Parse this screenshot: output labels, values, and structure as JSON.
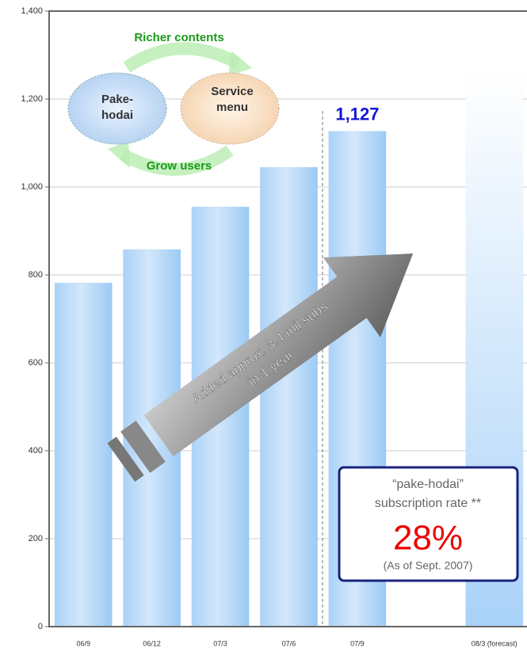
{
  "chart_data": {
    "type": "bar",
    "categories": [
      "06/9",
      "06/12",
      "07/3",
      "07/6",
      "07/9",
      null,
      "08/3 (forecast)"
    ],
    "values": [
      782,
      858,
      955,
      1045,
      1127,
      null,
      1258
    ],
    "value_labels": [
      null,
      null,
      null,
      null,
      "1,127",
      null,
      null
    ],
    "colors": [
      "#9ccaf5",
      "#9ccaf5",
      "#9ccaf5",
      "#9ccaf5",
      "#9ccaf5",
      null,
      "#a9d2f8"
    ],
    "ylim": [
      0,
      1400
    ],
    "yticks": [
      0,
      200,
      400,
      600,
      800,
      {
        "value": 1000,
        "label": "1,000"
      },
      {
        "value": 1200,
        "label": "1,200"
      },
      {
        "value": 1400,
        "label": "1,400"
      }
    ],
    "grid": true,
    "annotations": {
      "cycle_top": "Richer contents",
      "cycle_left": [
        "Pake-",
        "hodai"
      ],
      "cycle_right": [
        "Service",
        "menu"
      ],
      "cycle_bottom": "Grow users",
      "arrow": [
        "Added approx. 3.4 mil subs",
        "in 1 year"
      ],
      "box": [
        "“pake-hodai”",
        "subscription rate **",
        "28%",
        "(As of Sept. 2007)"
      ]
    }
  }
}
